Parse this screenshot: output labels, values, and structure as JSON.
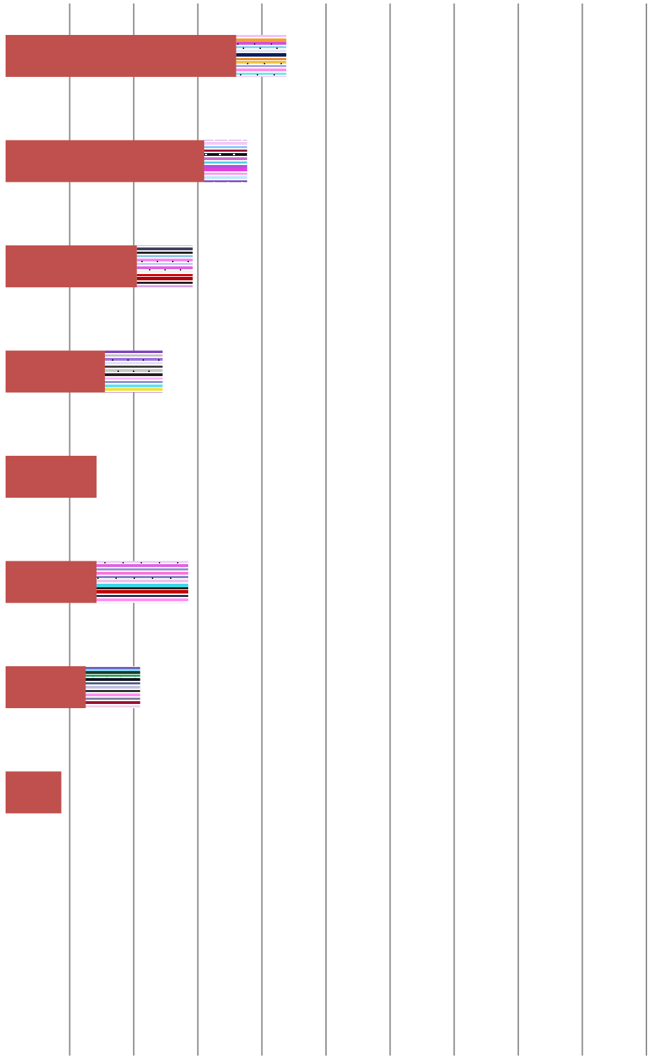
{
  "chart_data": {
    "type": "bar",
    "orientation": "horizontal",
    "stacked": true,
    "x_range": [
      0,
      10
    ],
    "grid": true,
    "gridline_count": 10,
    "bar_color": "#c0504d",
    "segment_style": "noise-pattern",
    "series": [
      {
        "values": [
          3.6,
          3.1,
          2.05,
          1.55,
          1.42,
          1.42,
          1.25,
          0.87
        ]
      },
      {
        "values": [
          0.78,
          0.67,
          0.87,
          0.9,
          0,
          1.43,
          0.85,
          0
        ]
      }
    ]
  }
}
